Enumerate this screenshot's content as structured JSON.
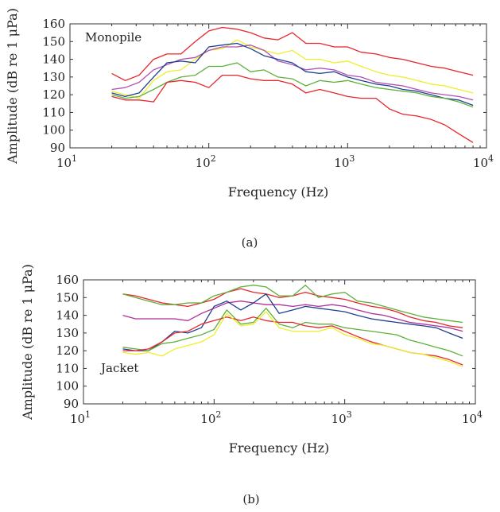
{
  "colors": {
    "red": "#e8262b",
    "yellow": "#eeee2a",
    "blue": "#1f3f8f",
    "green": "#5fb03b",
    "purple": "#b050b8",
    "magenta": "#b0309a"
  },
  "chart_data": [
    {
      "type": "line",
      "panel": "(a)",
      "title": "Monopile",
      "xlabel": "Frequency (Hz)",
      "ylabel": "Amplitude (dB re 1 μPa)",
      "xscale": "log",
      "xlim": [
        10,
        10000
      ],
      "ylim": [
        90,
        160
      ],
      "xticks": [
        {
          "base": "10",
          "exp": "1"
        },
        {
          "base": "10",
          "exp": "2"
        },
        {
          "base": "10",
          "exp": "3"
        },
        {
          "base": "10",
          "exp": "4"
        }
      ],
      "yticks": [
        "90",
        "100",
        "110",
        "120",
        "130",
        "140",
        "150",
        "160"
      ],
      "grid": false,
      "x": [
        20,
        25,
        31.5,
        40,
        50,
        63,
        80,
        100,
        125,
        160,
        200,
        250,
        315,
        400,
        500,
        630,
        800,
        1000,
        1250,
        1600,
        2000,
        2500,
        3150,
        4000,
        5000,
        6300,
        8000
      ],
      "series": [
        {
          "color": "red",
          "values": [
            132,
            128,
            131,
            140,
            143,
            143,
            150,
            156,
            158,
            157,
            155,
            152,
            151,
            155,
            149,
            149,
            147,
            147,
            144,
            143,
            141,
            140,
            138,
            136,
            135,
            133,
            131
          ]
        },
        {
          "color": "yellow",
          "values": [
            122,
            120,
            118,
            128,
            133,
            134,
            140,
            145,
            146,
            151,
            147,
            145,
            143,
            145,
            140,
            140,
            138,
            139,
            136,
            133,
            131,
            130,
            128,
            126,
            125,
            123,
            121
          ]
        },
        {
          "color": "purple",
          "values": [
            123,
            124,
            127,
            134,
            137,
            140,
            141,
            145,
            147,
            147,
            148,
            145,
            139,
            137,
            134,
            135,
            134,
            131,
            130,
            127,
            126,
            125,
            123,
            121,
            120,
            119,
            117
          ]
        },
        {
          "color": "blue",
          "values": [
            121,
            119,
            121,
            130,
            138,
            139,
            138,
            147,
            148,
            149,
            146,
            142,
            140,
            138,
            133,
            132,
            133,
            130,
            128,
            126,
            125,
            123,
            122,
            120,
            118,
            117,
            114
          ]
        },
        {
          "color": "green",
          "values": [
            120,
            118,
            119,
            123,
            127,
            130,
            131,
            136,
            136,
            138,
            133,
            134,
            130,
            129,
            125,
            128,
            127,
            128,
            126,
            124,
            123,
            122,
            121,
            119,
            118,
            116,
            113
          ]
        },
        {
          "color": "red",
          "values": [
            119,
            117,
            117,
            116,
            127,
            128,
            127,
            124,
            131,
            131,
            129,
            128,
            128,
            126,
            121,
            123,
            121,
            119,
            118,
            118,
            112,
            109,
            108,
            106,
            103,
            98,
            93
          ]
        }
      ]
    },
    {
      "type": "line",
      "panel": "(b)",
      "title": "Jacket",
      "xlabel": "Frequency (Hz)",
      "ylabel": "Amplitude (dB re 1 μPa)",
      "xscale": "log",
      "xlim": [
        10,
        10000
      ],
      "ylim": [
        90,
        160
      ],
      "xticks": [
        {
          "base": "10",
          "exp": "1"
        },
        {
          "base": "10",
          "exp": "2"
        },
        {
          "base": "10",
          "exp": "3"
        },
        {
          "base": "10",
          "exp": "4"
        }
      ],
      "yticks": [
        "90",
        "100",
        "110",
        "120",
        "130",
        "140",
        "150",
        "160"
      ],
      "grid": false,
      "x": [
        20,
        25,
        31.5,
        40,
        50,
        63,
        80,
        100,
        125,
        160,
        200,
        250,
        315,
        400,
        500,
        630,
        800,
        1000,
        1250,
        1600,
        2000,
        2500,
        3150,
        4000,
        5000,
        6300,
        8000
      ],
      "series": [
        {
          "color": "red",
          "values": [
            152,
            151,
            149,
            147,
            146,
            145,
            147,
            149,
            153,
            155,
            153,
            152,
            150,
            151,
            153,
            151,
            150,
            149,
            147,
            145,
            144,
            142,
            139,
            137,
            136,
            134,
            133
          ]
        },
        {
          "color": "green",
          "values": [
            152,
            150,
            148,
            146,
            146,
            147,
            147,
            151,
            153,
            156,
            157,
            156,
            151,
            151,
            157,
            150,
            152,
            153,
            148,
            147,
            145,
            143,
            141,
            139,
            138,
            137,
            136
          ]
        },
        {
          "color": "magenta",
          "values": [
            140,
            138,
            138,
            138,
            138,
            137,
            141,
            144,
            147,
            148,
            147,
            146,
            146,
            145,
            146,
            145,
            146,
            145,
            143,
            141,
            140,
            138,
            136,
            135,
            134,
            133,
            131
          ]
        },
        {
          "color": "blue",
          "values": [
            121,
            120,
            120,
            125,
            131,
            130,
            133,
            145,
            148,
            143,
            147,
            152,
            141,
            143,
            145,
            144,
            143,
            142,
            140,
            138,
            137,
            136,
            135,
            134,
            133,
            130,
            127
          ]
        },
        {
          "color": "green",
          "values": [
            122,
            121,
            120,
            124,
            125,
            127,
            129,
            132,
            143,
            135,
            136,
            144,
            135,
            133,
            136,
            135,
            135,
            133,
            132,
            131,
            130,
            129,
            126,
            124,
            122,
            120,
            117
          ]
        },
        {
          "color": "red",
          "values": [
            120,
            120,
            121,
            125,
            130,
            131,
            135,
            137,
            139,
            137,
            139,
            137,
            136,
            136,
            134,
            133,
            134,
            131,
            128,
            125,
            123,
            121,
            119,
            118,
            117,
            115,
            112
          ]
        },
        {
          "color": "yellow",
          "values": [
            119,
            118,
            119,
            117,
            121,
            123,
            125,
            129,
            141,
            134,
            135,
            142,
            133,
            131,
            131,
            131,
            133,
            129,
            127,
            124,
            123,
            121,
            119,
            118,
            116,
            114,
            111
          ]
        }
      ]
    }
  ]
}
